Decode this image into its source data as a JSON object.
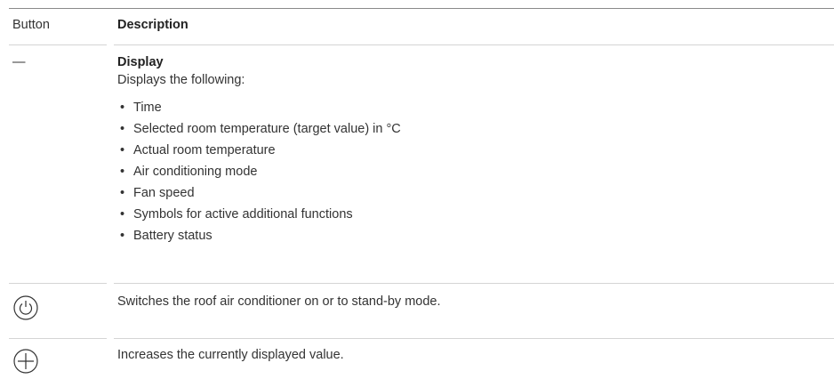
{
  "table": {
    "header": [
      "Button",
      "Description"
    ],
    "rows": [
      {
        "button": "—",
        "title": "Display",
        "text": "Displays the following:",
        "items": [
          "Time",
          "Selected room temperature (target value) in °C",
          "Actual room temperature",
          "Air conditioning mode",
          "Fan speed",
          "Symbols for active additional functions",
          "Battery status"
        ]
      },
      {
        "text": "Switches the roof air conditioner on or to stand-by mode."
      },
      {
        "text": "Increases the currently displayed value."
      }
    ]
  }
}
